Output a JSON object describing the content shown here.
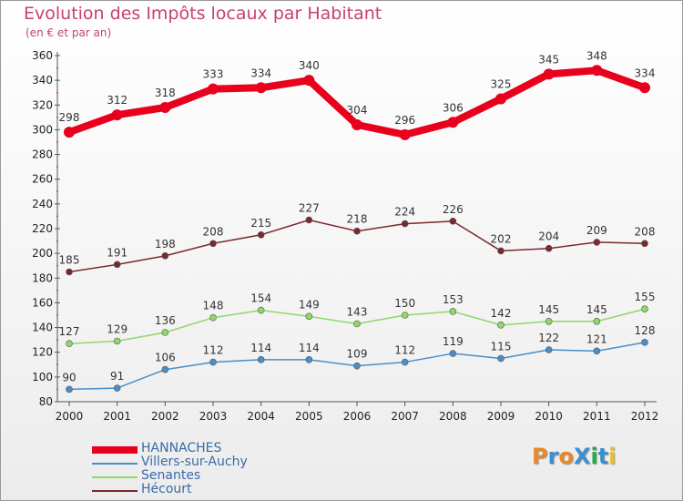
{
  "title": "Evolution des Impôts locaux par Habitant",
  "subtitle": "(en € et par an)",
  "logo": {
    "text": "ProXiti",
    "letters": [
      "P",
      "r",
      "o",
      "X",
      "i",
      "t",
      "i"
    ],
    "colors": [
      "#e8892a",
      "#3a8fd0",
      "#e8892a",
      "#3a8fd0",
      "#2aa84a",
      "#3a8fd0",
      "#e8c02a"
    ]
  },
  "chart_data": {
    "type": "line",
    "title": "Evolution des Impôts locaux par Habitant",
    "subtitle": "(en € et par an)",
    "xlabel": "",
    "ylabel": "",
    "ylim": [
      80,
      360
    ],
    "ytick_step": 20,
    "categories": [
      "2000",
      "2001",
      "2002",
      "2003",
      "2004",
      "2005",
      "2006",
      "2007",
      "2008",
      "2009",
      "2010",
      "2011",
      "2012"
    ],
    "grid": false,
    "legend_position": "bottom-left",
    "series": [
      {
        "name": "HANNACHES",
        "color": "#e8001c",
        "values": [
          298,
          312,
          318,
          333,
          334,
          340,
          304,
          296,
          306,
          325,
          345,
          348,
          334
        ],
        "emphasis": true
      },
      {
        "name": "Villers-sur-Auchy",
        "color": "#4a8ec8",
        "values": [
          90,
          91,
          106,
          112,
          114,
          114,
          109,
          112,
          119,
          115,
          122,
          121,
          128
        ]
      },
      {
        "name": "Senantes",
        "color": "#8ed86a",
        "values": [
          127,
          129,
          136,
          148,
          154,
          149,
          143,
          150,
          153,
          142,
          145,
          145,
          155
        ]
      },
      {
        "name": "Hécourt",
        "color": "#7a2a2e",
        "values": [
          185,
          191,
          198,
          208,
          215,
          227,
          218,
          224,
          226,
          202,
          204,
          209,
          208
        ]
      }
    ]
  }
}
